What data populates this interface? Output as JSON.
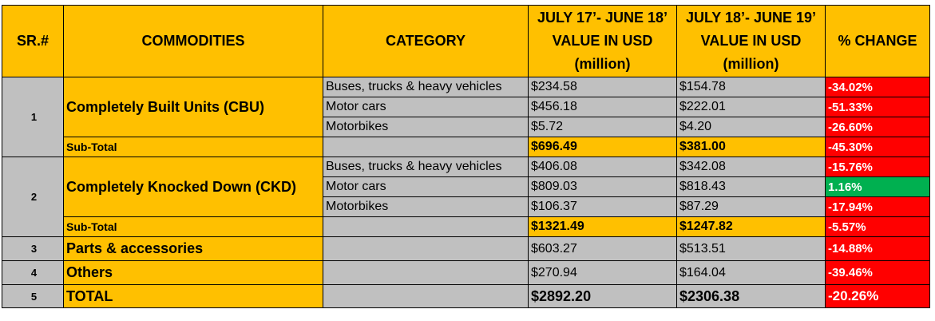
{
  "header": {
    "sr": "SR.#",
    "commodities": "COMMODITIES",
    "category": "CATEGORY",
    "period1": [
      "JULY 17’- JUNE 18’",
      "VALUE IN USD",
      "(million)"
    ],
    "period2": [
      "JULY 18’- JUNE 19’",
      "VALUE IN USD",
      "(million)"
    ],
    "change": "% CHANGE"
  },
  "groups": [
    {
      "sr": "1",
      "commodity": "Completely Built Units (CBU)",
      "rows": [
        {
          "category": "Buses, trucks & heavy vehicles",
          "v1": "$234.58",
          "v2": "$154.78",
          "change": "-34.02%",
          "status": "negative"
        },
        {
          "category": "Motor cars",
          "v1": "$456.18",
          "v2": "$222.01",
          "change": "-51.33%",
          "status": "negative"
        },
        {
          "category": "Motorbikes",
          "v1": "$5.72",
          "v2": "$4.20",
          "change": "-26.60%",
          "status": "negative"
        }
      ],
      "subtotal": {
        "label": "Sub-Total",
        "v1": "$696.49",
        "v2": "$381.00",
        "change": "-45.30%",
        "status": "negative"
      }
    },
    {
      "sr": "2",
      "commodity": "Completely Knocked Down (CKD)",
      "rows": [
        {
          "category": "Buses, trucks & heavy vehicles",
          "v1": "$406.08",
          "v2": "$342.08",
          "change": "-15.76%",
          "status": "negative"
        },
        {
          "category": "Motor cars",
          "v1": "$809.03",
          "v2": "$818.43",
          "change": "1.16%",
          "status": "positive"
        },
        {
          "category": "Motorbikes",
          "v1": "$106.37",
          "v2": "$87.29",
          "change": "-17.94%",
          "status": "negative"
        }
      ],
      "subtotal": {
        "label": "Sub-Total",
        "v1": "$1321.49",
        "v2": "$1247.82",
        "change": "-5.57%",
        "status": "negative"
      }
    }
  ],
  "singles": [
    {
      "sr": "3",
      "commodity": "Parts & accessories",
      "v1": "$603.27",
      "v2": "$513.51",
      "change": "-14.88%",
      "status": "negative"
    },
    {
      "sr": "4",
      "commodity": "Others",
      "v1": "$270.94",
      "v2": "$164.04",
      "change": "-39.46%",
      "status": "negative"
    }
  ],
  "total": {
    "sr": "5",
    "label": "TOTAL",
    "v1": "$2892.20",
    "v2": "$2306.38",
    "change": "-20.26%",
    "status": "negative"
  },
  "colors": {
    "header": "#ffc000",
    "cell_gray": "#c0c0c0",
    "negative": "#ff0000",
    "positive": "#00b050"
  }
}
